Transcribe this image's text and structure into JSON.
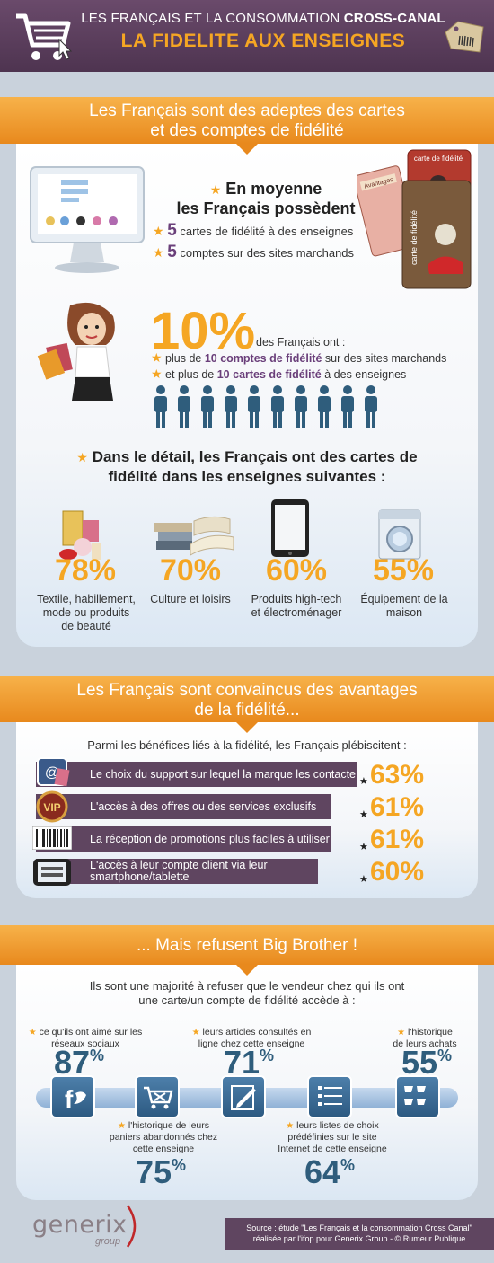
{
  "header": {
    "line1_normal": "LES FRANÇAIS ET LA CONSOMMATION ",
    "line1_bold": "CROSS-CANAL",
    "line2": "LA FIDELITE AUX ENSEIGNES"
  },
  "s1": {
    "banner": [
      "Les Français sont des adeptes des cartes",
      "et des comptes de fidélité"
    ],
    "moyenne_title": [
      "En moyenne",
      "les Français possèdent"
    ],
    "moyenne_items": [
      {
        "n": "5",
        "text": "cartes de fidélité à des enseignes"
      },
      {
        "n": "5",
        "text": "comptes sur des sites marchands"
      }
    ],
    "card_labels": [
      "carte de fidélité",
      "carte de fidélité",
      "Avantages"
    ],
    "ten_pct": "10%",
    "ten_intro": "des Français ont :",
    "ten_items": [
      {
        "pre": "plus de ",
        "bold": "10 comptes de fidélité",
        "post": " sur des sites marchands"
      },
      {
        "pre": "et plus de ",
        "bold": "10 cartes de fidélité",
        "post": " à des enseignes"
      }
    ],
    "people_highlighted": 1,
    "people_total": 10,
    "detail_title": [
      "Dans le détail, les Français ont des cartes de",
      "fidélité dans les enseignes suivantes :"
    ],
    "categories": [
      {
        "pct": "78%",
        "label": [
          "Textile, habillement,",
          "mode ou produits",
          "de beauté"
        ]
      },
      {
        "pct": "70%",
        "label": [
          "Culture et loisirs"
        ]
      },
      {
        "pct": "60%",
        "label": [
          "Produits high-tech",
          "et électroménager"
        ]
      },
      {
        "pct": "55%",
        "label": [
          "Équipement de la",
          "maison"
        ]
      }
    ]
  },
  "s2": {
    "banner": [
      "Les Français sont convaincus des avantages",
      "de la fidélité..."
    ],
    "subtitle": "Parmi les bénéfices liés à la fidélité, les Français plébiscitent :",
    "items": [
      {
        "text": "Le choix du support sur lequel la marque les contacte",
        "pct": "63%"
      },
      {
        "text": "L'accès à des offres ou des services exclusifs",
        "pct": "61%"
      },
      {
        "text": "La réception de promotions plus faciles à utiliser",
        "pct": "61%"
      },
      {
        "text": "L'accès à leur compte client via leur smartphone/tablette",
        "pct": "60%"
      }
    ],
    "vip_label": "VIP"
  },
  "s3": {
    "banner": "... Mais refusent Big Brother !",
    "subtitle": [
      "Ils sont une majorité à refuser que le vendeur chez qui ils ont",
      "une carte/un compte de fidélité accède à :"
    ],
    "top": [
      {
        "label": [
          "ce qu'ils ont aimé sur les",
          "réseaux sociaux"
        ],
        "pct": "87",
        "unit": "%"
      },
      {
        "label": [
          "leurs articles consultés en",
          "ligne chez cette enseigne"
        ],
        "pct": "71",
        "unit": "%"
      },
      {
        "label": [
          "l'historique",
          "de leurs achats"
        ],
        "pct": "55",
        "unit": "%"
      }
    ],
    "bottom": [
      {
        "label": [
          "l'historique de leurs",
          "paniers abandonnés chez",
          "cette enseigne"
        ],
        "pct": "75",
        "unit": "%"
      },
      {
        "label": [
          "leurs listes de choix",
          "prédéfinies sur le site",
          "Internet de cette enseigne"
        ],
        "pct": "64",
        "unit": "%"
      }
    ]
  },
  "footer": {
    "logo": "generix",
    "logo_sub": "group",
    "source": [
      "Source : étude \"Les Français et la consommation Cross Canal\"",
      "réalisée par l'ifop pour Generix Group - © Rumeur Publique"
    ]
  }
}
